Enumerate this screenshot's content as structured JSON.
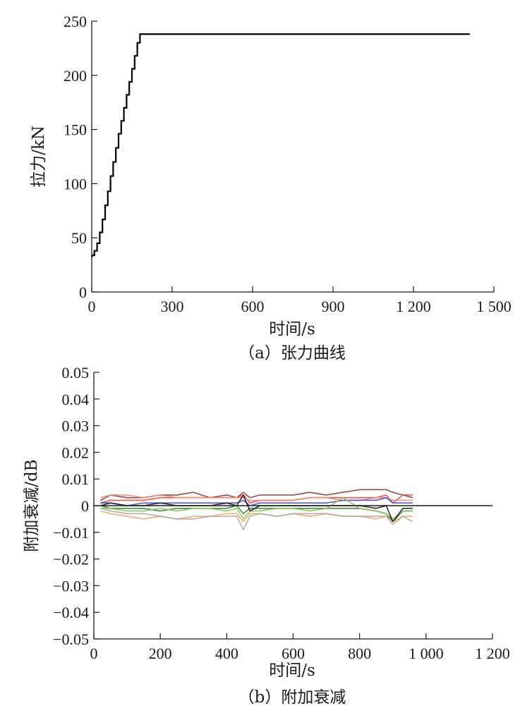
{
  "chart_data": [
    {
      "type": "line",
      "caption": "（a）张力曲线",
      "xlabel": "时间/s",
      "ylabel": "拉力/kN",
      "xlim": [
        0,
        1500
      ],
      "ylim": [
        0,
        250
      ],
      "xticks": [
        0,
        300,
        600,
        900,
        1200,
        1500
      ],
      "xtick_labels": [
        "0",
        "300",
        "600",
        "900",
        "1 200",
        "1 500"
      ],
      "yticks": [
        0,
        50,
        100,
        150,
        200,
        250
      ],
      "ytick_labels": [
        "0",
        "50",
        "100",
        "150",
        "200",
        "250"
      ],
      "grid": false,
      "series": [
        {
          "color": "#000000",
          "x": [
            0,
            3,
            10,
            20,
            30,
            40,
            50,
            60,
            70,
            80,
            90,
            100,
            110,
            120,
            130,
            140,
            150,
            160,
            170,
            180,
            1410
          ],
          "y": [
            33,
            34,
            38,
            45,
            55,
            67,
            80,
            93,
            107,
            120,
            133,
            146,
            158,
            170,
            182,
            194,
            206,
            218,
            230,
            238,
            238
          ]
        }
      ]
    },
    {
      "type": "line",
      "caption": "（b）附加衰减",
      "xlabel": "时间/s",
      "ylabel": "附加衰减/dB",
      "xlim": [
        0,
        1200
      ],
      "ylim": [
        -0.05,
        0.05
      ],
      "xticks": [
        0,
        200,
        400,
        600,
        800,
        1000,
        1200
      ],
      "xtick_labels": [
        "0",
        "200",
        "400",
        "600",
        "800",
        "1 000",
        "1 200"
      ],
      "yticks": [
        0.05,
        0.04,
        0.03,
        0.02,
        0.01,
        0,
        -0.01,
        -0.02,
        -0.03,
        -0.04,
        -0.05
      ],
      "ytick_labels": [
        "0.05",
        "0.04",
        "0.03",
        "0.02",
        "0.01",
        "0",
        "−0.01",
        "−0.02",
        "−0.03",
        "−0.04",
        "−0.05"
      ],
      "grid": false,
      "baseline": 0,
      "x": [
        20,
        50,
        100,
        150,
        200,
        250,
        300,
        350,
        400,
        430,
        450,
        470,
        500,
        550,
        600,
        650,
        700,
        750,
        800,
        850,
        880,
        900,
        930,
        960
      ],
      "series": [
        {
          "color": "#8b3a3a",
          "values": [
            0.002,
            0.004,
            0.003,
            0.003,
            0.004,
            0.004,
            0.005,
            0.003,
            0.004,
            0.003,
            0.005,
            0.003,
            0.004,
            0.004,
            0.004,
            0.005,
            0.004,
            0.005,
            0.006,
            0.006,
            0.006,
            0.005,
            0.004,
            0.003
          ]
        },
        {
          "color": "#e8433f",
          "values": [
            0.001,
            0.002,
            0.002,
            0.002,
            0.003,
            0.003,
            0.003,
            0.003,
            0.003,
            0.003,
            0.004,
            0.001,
            0.002,
            0.002,
            0.002,
            0.003,
            0.003,
            0.003,
            0.003,
            0.003,
            0.004,
            0.001,
            0.004,
            0.004
          ]
        },
        {
          "color": "#f08a7a",
          "values": [
            0.003,
            0.004,
            0.004,
            0.003,
            0.004,
            0.003,
            0.003,
            0.003,
            0.003,
            0.003,
            0.003,
            0.002,
            0.002,
            0.002,
            0.002,
            0.003,
            0.003,
            0.002,
            0.002,
            0.003,
            0.003,
            0.002,
            0.002,
            0.002
          ]
        },
        {
          "color": "#3b4fc4",
          "values": [
            0.001,
            0.001,
            0.0,
            0.001,
            0.001,
            0.001,
            0.001,
            0.001,
            0.001,
            0.001,
            0.002,
            0.0,
            0.001,
            0.001,
            0.001,
            0.001,
            0.001,
            0.002,
            0.002,
            0.002,
            0.003,
            0.001,
            0.001,
            0.001
          ]
        },
        {
          "color": "#2e7d32",
          "values": [
            0.0,
            -0.001,
            -0.001,
            -0.001,
            -0.002,
            -0.001,
            -0.001,
            -0.001,
            -0.001,
            0.0,
            -0.003,
            -0.001,
            -0.001,
            -0.001,
            -0.001,
            -0.001,
            -0.001,
            -0.001,
            -0.001,
            -0.002,
            -0.003,
            -0.006,
            -0.002,
            -0.002
          ]
        },
        {
          "color": "#8bc34a",
          "values": [
            -0.001,
            -0.001,
            -0.002,
            -0.002,
            -0.001,
            -0.002,
            -0.001,
            -0.001,
            -0.002,
            -0.001,
            -0.005,
            -0.002,
            -0.002,
            -0.001,
            -0.001,
            -0.002,
            -0.001,
            0.003,
            -0.001,
            -0.002,
            -0.003,
            -0.005,
            -0.002,
            -0.002
          ]
        },
        {
          "color": "#f4a460",
          "values": [
            -0.002,
            -0.003,
            -0.004,
            -0.005,
            -0.004,
            -0.005,
            -0.004,
            -0.004,
            -0.003,
            -0.003,
            -0.006,
            -0.003,
            -0.003,
            -0.004,
            -0.003,
            -0.004,
            -0.003,
            -0.004,
            -0.004,
            -0.005,
            -0.004,
            -0.006,
            -0.004,
            -0.004
          ]
        },
        {
          "color": "#a9a9a9",
          "values": [
            -0.001,
            -0.002,
            -0.003,
            -0.003,
            -0.004,
            -0.005,
            -0.005,
            -0.004,
            -0.004,
            -0.004,
            -0.009,
            -0.004,
            -0.003,
            -0.004,
            -0.003,
            -0.003,
            -0.003,
            -0.004,
            -0.004,
            -0.004,
            -0.004,
            -0.007,
            -0.004,
            -0.006
          ]
        },
        {
          "color": "#1a1a1a",
          "values": [
            0.0,
            0.001,
            0.0,
            0.0,
            0.001,
            0.0,
            0.0,
            0.0,
            0.001,
            0.0,
            0.004,
            -0.002,
            0.0,
            0.0,
            0.0,
            0.0,
            0.0,
            0.0,
            0.0,
            -0.001,
            0.0,
            -0.006,
            -0.001,
            -0.001
          ]
        }
      ]
    }
  ]
}
